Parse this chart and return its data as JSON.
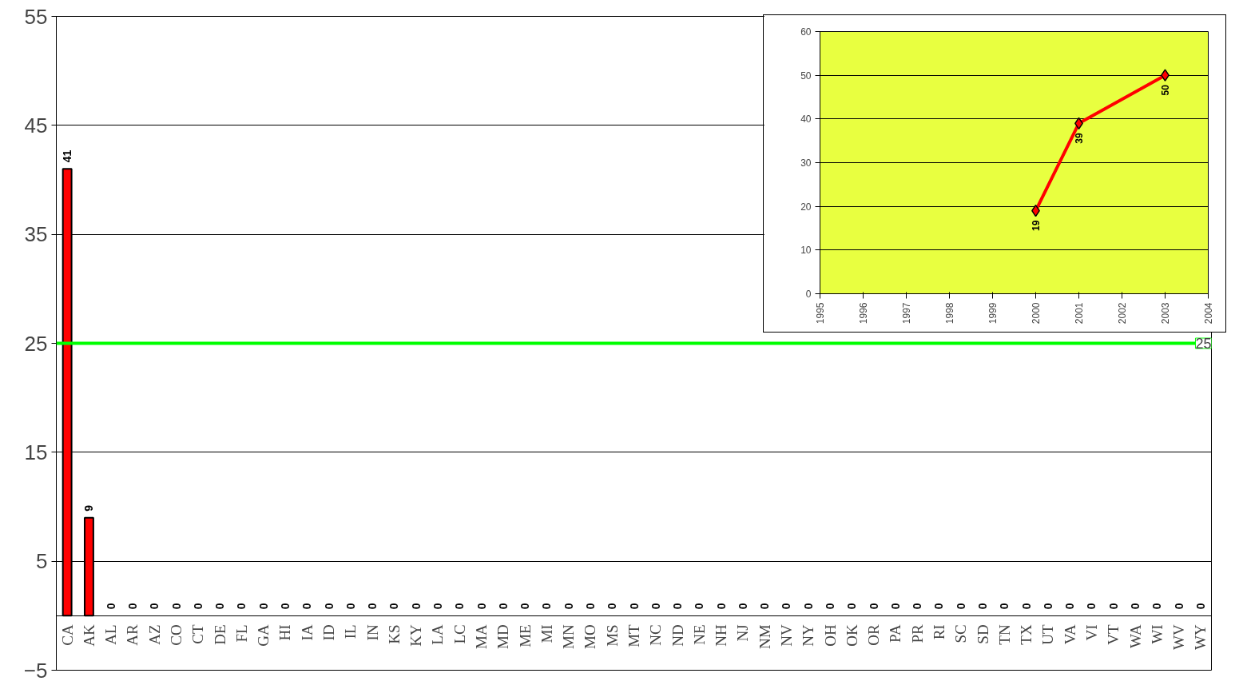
{
  "chart_data": [
    {
      "type": "bar",
      "categories": [
        "CA",
        "AK",
        "AL",
        "AR",
        "AZ",
        "CO",
        "CT",
        "DE",
        "FL",
        "GA",
        "HI",
        "IA",
        "ID",
        "IL",
        "IN",
        "KS",
        "KY",
        "LA",
        "LC",
        "MA",
        "MD",
        "ME",
        "MI",
        "MN",
        "MO",
        "MS",
        "MT",
        "NC",
        "ND",
        "NE",
        "NH",
        "NJ",
        "NM",
        "NV",
        "NY",
        "OH",
        "OK",
        "OR",
        "PA",
        "PR",
        "RI",
        "SC",
        "SD",
        "TN",
        "TX",
        "UT",
        "VA",
        "VI",
        "VT",
        "WA",
        "WI",
        "WV",
        "WY"
      ],
      "values": [
        41,
        9,
        0,
        0,
        0,
        0,
        0,
        0,
        0,
        0,
        0,
        0,
        0,
        0,
        0,
        0,
        0,
        0,
        0,
        0,
        0,
        0,
        0,
        0,
        0,
        0,
        0,
        0,
        0,
        0,
        0,
        0,
        0,
        0,
        0,
        0,
        0,
        0,
        0,
        0,
        0,
        0,
        0,
        0,
        0,
        0,
        0,
        0,
        0,
        0,
        0,
        0,
        0
      ],
      "color": "#ff0000",
      "ylim": [
        -5,
        55
      ],
      "yticks": [
        -5,
        5,
        15,
        25,
        35,
        45,
        55
      ],
      "grid": "y",
      "data_labels": true,
      "ref_lines": [
        {
          "axis": "y",
          "value": 25,
          "label": "25",
          "color": "#00ff00"
        }
      ]
    },
    {
      "type": "line",
      "x": [
        2000,
        2001,
        2003
      ],
      "values": [
        19,
        39,
        50
      ],
      "color": "#ff0000",
      "marker": "diamond",
      "xlim": [
        1995,
        2004
      ],
      "xticks": [
        1995,
        1996,
        1997,
        1998,
        1999,
        2000,
        2001,
        2002,
        2003,
        2004
      ],
      "ylim": [
        0,
        60
      ],
      "yticks": [
        0,
        10,
        20,
        30,
        40,
        50,
        60
      ],
      "grid": "y",
      "data_labels": true
    }
  ]
}
